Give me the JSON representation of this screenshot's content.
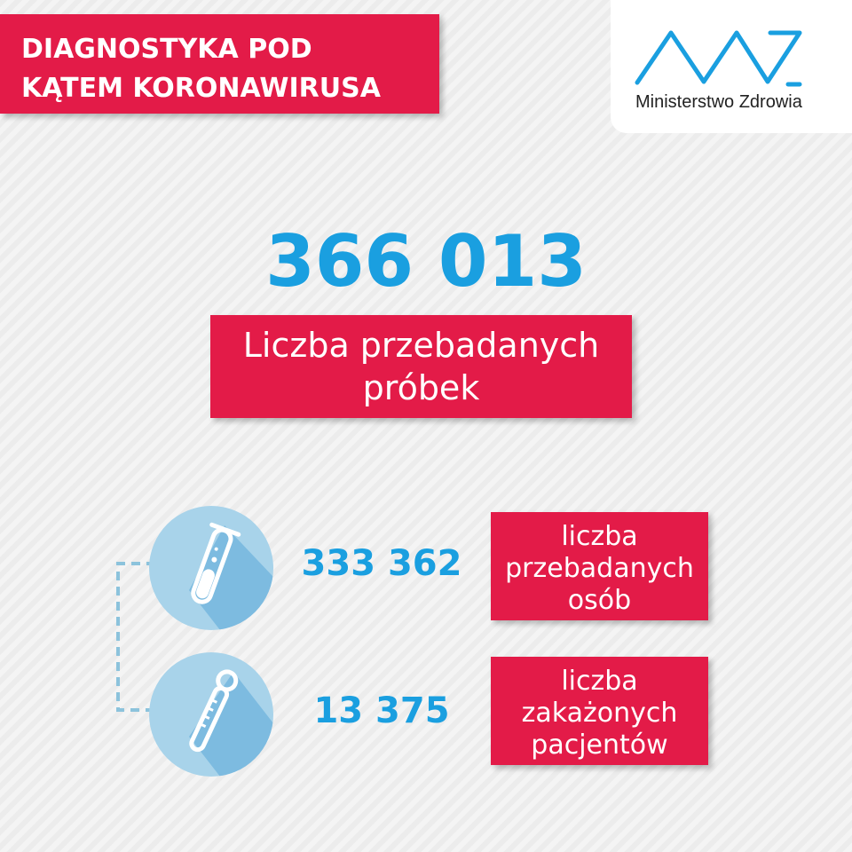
{
  "header": {
    "title_line1": "DIAGNOSTYKA POD",
    "title_line2": "KĄTEM KORONAWIRUSA"
  },
  "logo": {
    "text": "Ministerstwo Zdrowia",
    "color": "#1a9fe0"
  },
  "main": {
    "total": "366 013",
    "total_label": "Liczba przebadanych próbek"
  },
  "stats": [
    {
      "icon": "test-tube-icon",
      "value": "333 362",
      "label_lines": [
        "liczba",
        "przebadanych",
        "osób"
      ]
    },
    {
      "icon": "thermometer-icon",
      "value": "13 375",
      "label_lines": [
        "liczba",
        "zakażonych",
        "pacjentów"
      ]
    }
  ],
  "colors": {
    "red": "#e31b48",
    "blue": "#1a9fe0",
    "circle": "#a8d3ea"
  }
}
